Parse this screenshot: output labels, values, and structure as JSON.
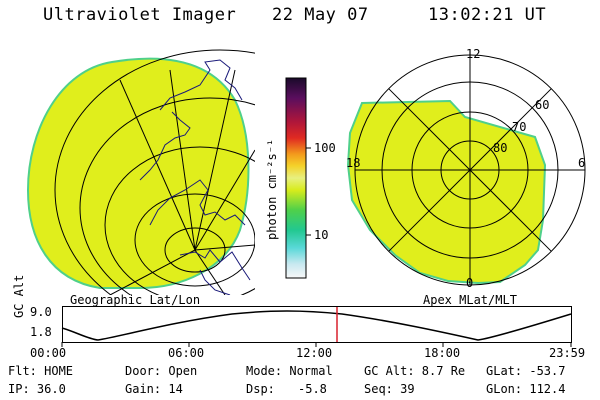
{
  "header": {
    "title": "Ultraviolet Imager",
    "date": "22 May 07",
    "time": "13:02:21 UT"
  },
  "left_panel": {
    "caption": "Geographic Lat/Lon"
  },
  "right_panel": {
    "caption": "Apex MLat/MLT",
    "mlt_labels": [
      "12",
      "18",
      "6",
      "0"
    ],
    "lat_labels": [
      "60",
      "70",
      "80"
    ]
  },
  "colorbar": {
    "unit_label": "photon cm⁻²s⁻¹",
    "tick_labels": [
      "100",
      "10"
    ]
  },
  "altitude_plot": {
    "ylabel": "GC Alt",
    "y_ticks": [
      "9.0",
      "1.8"
    ],
    "x_ticks": [
      "00:00",
      "06:00",
      "12:00",
      "18:00",
      "23:59"
    ],
    "marker_time": "13:02"
  },
  "info": {
    "flt": "Flt: HOME",
    "ip": "IP: 36.0",
    "door": "Door: Open",
    "gain": "Gain: 14",
    "mode": "Mode: Normal",
    "dsp_label": "Dsp:",
    "dsp_value": "-5.8",
    "gc_alt": "GC Alt: 8.7 Re",
    "seq": "Seq: 39",
    "glat": "GLat: -53.7",
    "glon": "GLon: 112.4"
  },
  "colors": {
    "image_fill": "#e0ee1c",
    "image_edge": "#4fd08a",
    "marker": "#d8202c"
  }
}
